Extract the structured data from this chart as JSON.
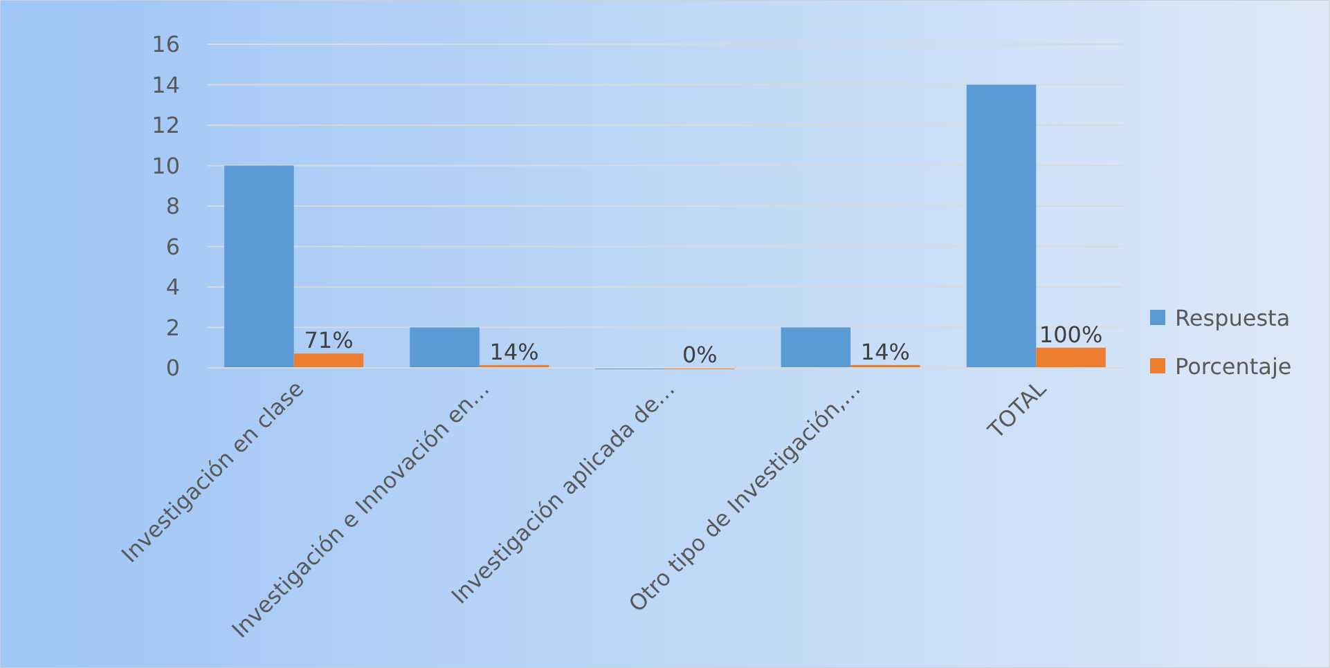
{
  "chart_data": {
    "type": "bar",
    "categories": [
      "Investigación en clase",
      "Investigación  e Innovación  en…",
      "Investigación aplicada de…",
      "Otro tipo de Investigación,…",
      "TOTAL"
    ],
    "series": [
      {
        "name": "Respuesta",
        "color": "#5b9bd5",
        "values": [
          10,
          2,
          0,
          2,
          14
        ]
      },
      {
        "name": "Porcentaje",
        "color": "#ed7d31",
        "values": [
          0.71,
          0.14,
          0,
          0.14,
          1
        ],
        "value_labels": [
          "71%",
          "14%",
          "0%",
          "14%",
          "100%"
        ]
      }
    ],
    "ylim": [
      0,
      16
    ],
    "yticks": [
      0,
      2,
      4,
      6,
      8,
      10,
      12,
      14,
      16
    ],
    "grid": "y",
    "legend": "right"
  }
}
